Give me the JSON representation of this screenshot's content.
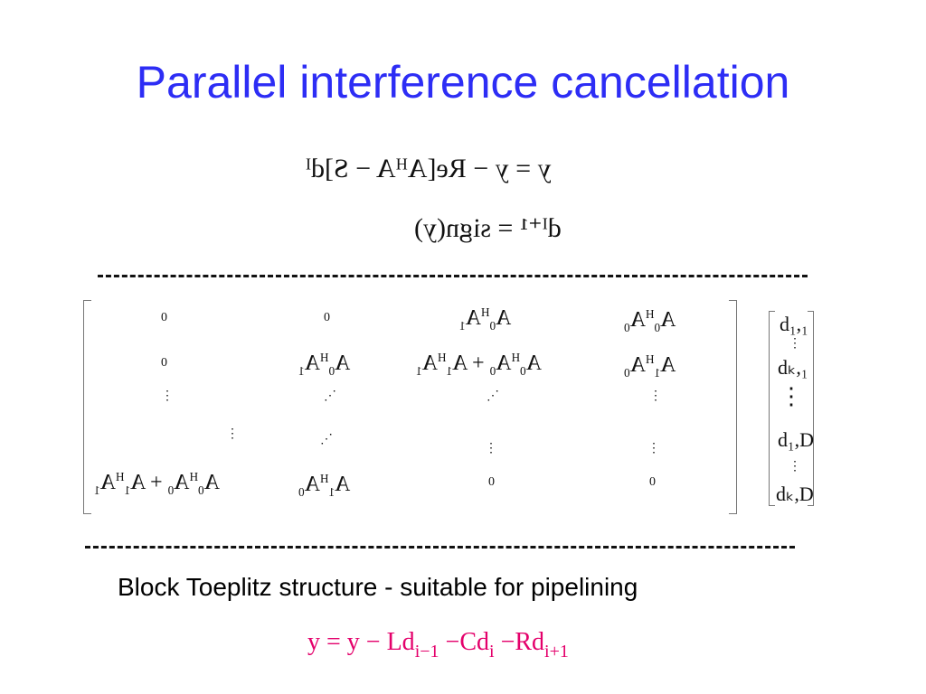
{
  "title": "Parallel interference cancellation",
  "equations": {
    "eq1": "y = y − Re[AᴴA − S]dᴵ",
    "eq2": "dᴵ⁺¹ = sign(y)"
  },
  "matrix": {
    "zero": "0",
    "vdots": "⋮",
    "ddots": "⋰"
  },
  "vector": {
    "entries": [
      "d₁,₁",
      "dₖ,₁",
      "d₁,D",
      "dₖ,D"
    ],
    "vdots": "⋮"
  },
  "caption": "Block Toeplitz structure - suitable for pipelining",
  "bottom_equation": {
    "y": "y",
    "eq": " = y − Ld",
    "sub1": "i−1",
    "mid": " −Cd",
    "sub2": "i",
    "end": " −Rd",
    "sub3": "i+1"
  },
  "colors": {
    "title": "#2d2df5",
    "bottom_equation": "#e4006b"
  }
}
